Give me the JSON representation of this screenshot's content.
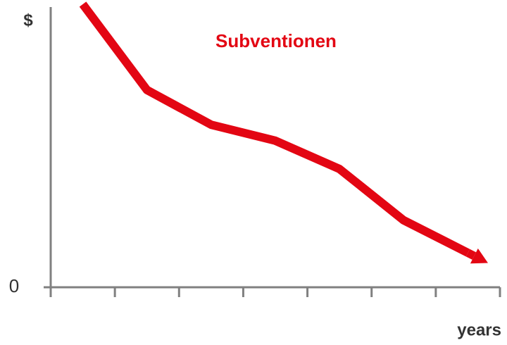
{
  "chart_data": {
    "type": "line",
    "title": "Subventionen",
    "y_label": "$",
    "x_label": "years",
    "categories": [
      null,
      null,
      null,
      null,
      null,
      null,
      null
    ],
    "values": [
      101,
      70.4,
      58,
      52.3,
      42.2,
      23.9,
      12.3
    ],
    "color": "#e30613",
    "title_color": "#e30613",
    "ylim": [
      0,
      100
    ],
    "yticks": [
      0
    ],
    "grid": false,
    "arrow": true
  }
}
